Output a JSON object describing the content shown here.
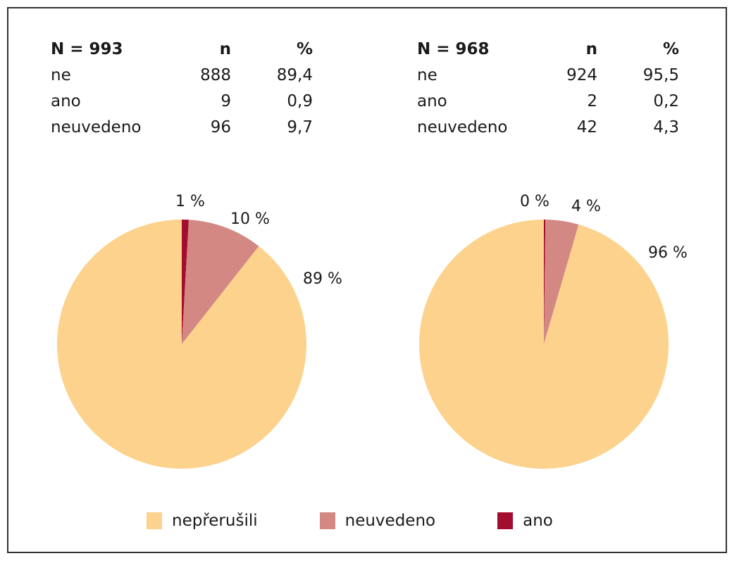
{
  "tables": [
    {
      "header": {
        "label": "N = 993",
        "n": "n",
        "pct": "%"
      },
      "rows": [
        {
          "label": "ne",
          "n": "888",
          "pct": "89,4"
        },
        {
          "label": "ano",
          "n": "9",
          "pct": "0,9"
        },
        {
          "label": "neuvedeno",
          "n": "96",
          "pct": "9,7"
        }
      ]
    },
    {
      "header": {
        "label": "N = 968",
        "n": "n",
        "pct": "%"
      },
      "rows": [
        {
          "label": "ne",
          "n": "924",
          "pct": "95,5"
        },
        {
          "label": "ano",
          "n": "2",
          "pct": "0,2"
        },
        {
          "label": "neuvedeno",
          "n": "42",
          "pct": "4,3"
        }
      ]
    }
  ],
  "legend": [
    {
      "label": "nepřerušili",
      "color": "#fcd28c"
    },
    {
      "label": "neuvedeno",
      "color": "#d38884"
    },
    {
      "label": "ano",
      "color": "#a30d2e"
    }
  ],
  "chart_data": [
    {
      "type": "pie",
      "slices": [
        {
          "category": "ano",
          "value": 0.9,
          "label": "1 %",
          "color": "#a30d2e"
        },
        {
          "category": "neuvedeno",
          "value": 9.7,
          "label": "10 %",
          "color": "#d38884"
        },
        {
          "category": "nepřerušili",
          "value": 89.4,
          "label": "89 %",
          "color": "#fcd28c"
        }
      ],
      "legend_position": "bottom"
    },
    {
      "type": "pie",
      "slices": [
        {
          "category": "ano",
          "value": 0.2,
          "label": "0 %",
          "color": "#a30d2e"
        },
        {
          "category": "neuvedeno",
          "value": 4.3,
          "label": "4 %",
          "color": "#d38884"
        },
        {
          "category": "nepřerušili",
          "value": 95.5,
          "label": "96 %",
          "color": "#fcd28c"
        }
      ],
      "legend_position": "bottom"
    }
  ]
}
